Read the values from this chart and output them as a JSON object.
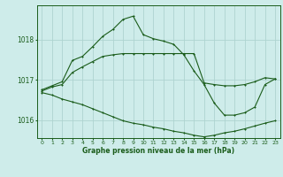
{
  "title": "Graphe pression niveau de la mer (hPa)",
  "background_color": "#ceecea",
  "grid_color": "#aed4d0",
  "line_color": "#1a5c1a",
  "xlim": [
    -0.5,
    23.5
  ],
  "ylim": [
    1015.55,
    1018.85
  ],
  "yticks": [
    1016,
    1017,
    1018
  ],
  "xticks": [
    0,
    1,
    2,
    3,
    4,
    5,
    6,
    7,
    8,
    9,
    10,
    11,
    12,
    13,
    14,
    15,
    16,
    17,
    18,
    19,
    20,
    21,
    22,
    23
  ],
  "series_main_x": [
    0,
    1,
    2,
    3,
    4,
    5,
    6,
    7,
    8,
    9,
    10,
    11,
    12,
    13,
    14,
    15,
    16,
    17,
    18,
    19,
    20,
    21,
    22,
    23
  ],
  "series_main_y": [
    1016.75,
    1016.85,
    1016.95,
    1017.48,
    1017.58,
    1017.82,
    1018.08,
    1018.25,
    1018.5,
    1018.58,
    1018.12,
    1018.02,
    1017.96,
    1017.88,
    1017.62,
    1017.22,
    1016.88,
    1016.42,
    1016.12,
    1016.12,
    1016.18,
    1016.32,
    1016.88,
    1017.02
  ],
  "series_flat_x": [
    0,
    1,
    2,
    3,
    4,
    5,
    6,
    7,
    8,
    9,
    10,
    11,
    12,
    13,
    14,
    15,
    16,
    17,
    18,
    19,
    20,
    21,
    22,
    23
  ],
  "series_flat_y": [
    1016.72,
    1016.82,
    1016.88,
    1017.18,
    1017.32,
    1017.45,
    1017.58,
    1017.62,
    1017.65,
    1017.65,
    1017.65,
    1017.65,
    1017.65,
    1017.65,
    1017.65,
    1017.65,
    1016.92,
    1016.88,
    1016.85,
    1016.85,
    1016.88,
    1016.95,
    1017.05,
    1017.02
  ],
  "series_low_x": [
    0,
    1,
    2,
    3,
    4,
    5,
    6,
    7,
    8,
    9,
    10,
    11,
    12,
    13,
    14,
    15,
    16,
    17,
    18,
    19,
    20,
    21,
    22,
    23
  ],
  "series_low_y": [
    1016.68,
    1016.62,
    1016.52,
    1016.45,
    1016.38,
    1016.28,
    1016.18,
    1016.08,
    1015.98,
    1015.92,
    1015.88,
    1015.82,
    1015.78,
    1015.72,
    1015.68,
    1015.62,
    1015.58,
    1015.62,
    1015.68,
    1015.72,
    1015.78,
    1015.85,
    1015.92,
    1015.98
  ],
  "ylabel_fontsize": 5.5,
  "xlabel_fontsize": 5.5,
  "tick_fontsize": 4.5,
  "linewidth": 0.8,
  "markersize": 2.0
}
